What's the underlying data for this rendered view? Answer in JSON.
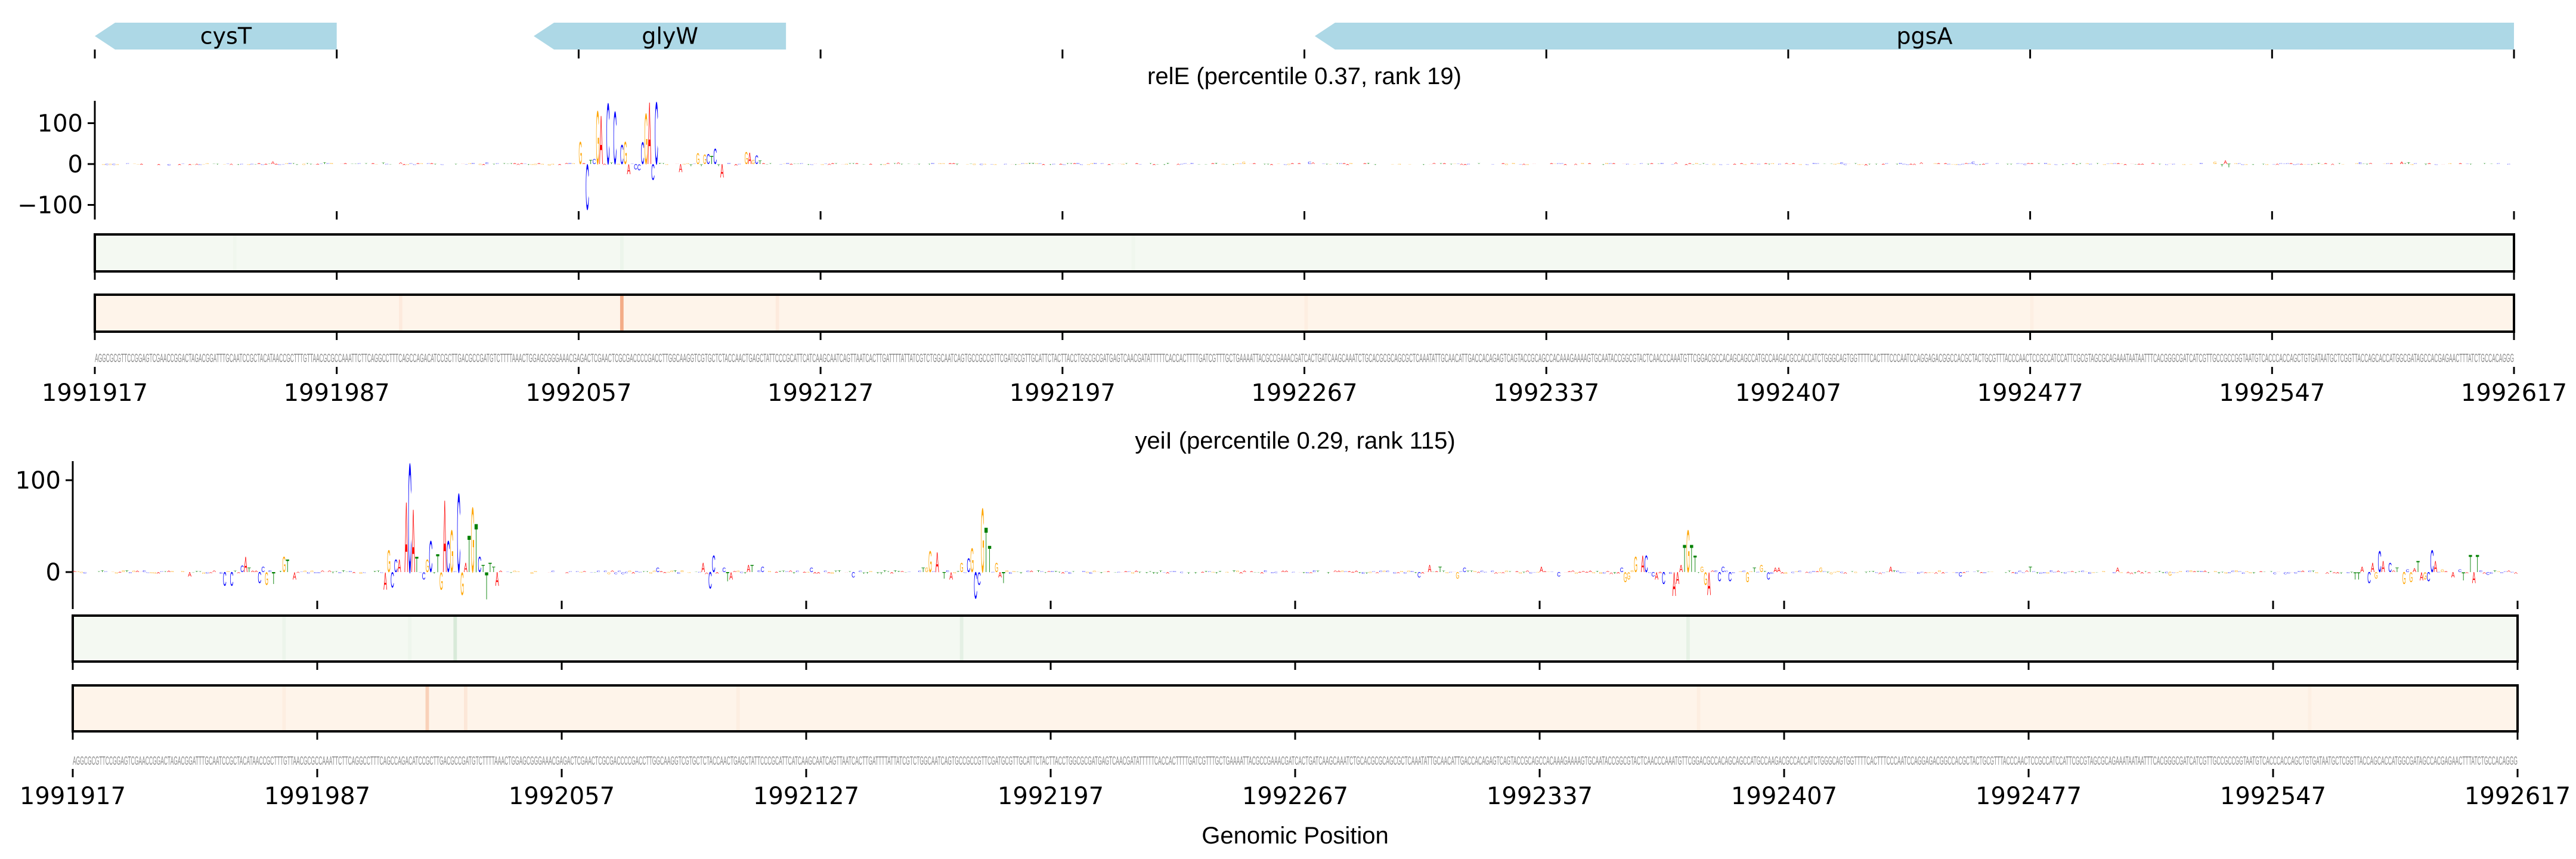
{
  "chart_data": {
    "type": "sequence-logo",
    "xlabel": "Genomic Position",
    "start": 1991917,
    "end": 1992617,
    "xticks": [
      "1991917",
      "1991987",
      "1992057",
      "1992127",
      "1992197",
      "1992267",
      "1992337",
      "1992407",
      "1992477",
      "1992547",
      "1992617"
    ],
    "letter_colors": {
      "A": "#ff0000",
      "C": "#0000ff",
      "G": "#ffa500",
      "T": "#008000"
    },
    "heatmap_colors": {
      "green_base": "#f4f9f2",
      "green_max": "#2e8b3e",
      "orange_base": "#fef4ea",
      "orange_max": "#e6550d"
    },
    "gene_color": "#add8e6",
    "genes": [
      {
        "name": "cysT",
        "start": 1991917,
        "end": 1991987,
        "strand": "-"
      },
      {
        "name": "glyW",
        "start": 1992044,
        "end": 1992117,
        "strand": "-"
      },
      {
        "name": "pgsA",
        "start": 1992270,
        "end": 1992617,
        "strand": "-"
      }
    ],
    "sequence": "AGGCGCGTTCCGGAGTCGAACCGGACTAGACGGATTTGCAATCCGCTACATAACCGCTTTGTTAACGCGCCAAATTCTTCAGGCCTTTCAGCCAGACATCCGCTTGACGCCGATGTCTTTTAAACTGGAGCGGGAAACGAGACTCGAACTCGCGACCCCGACCTTGGCAAGGTCGTGCTCTACCAACTGAGCTATTCCCGCATTCATCAAGCAATCAGTTAATCACTTGATTTTATTATCGTCTGGCAATCAGTGCCGCCGTTCGATGCGTTGCATTCTACTTACCTGGCGCGATGAGTCAACGATATTTTTCACCACTTTTGATCGTTTGCTGAAAATTACGCCGAAACGATCACTGATCAAGCAAATCTGCACGCGCAGCGCTCAAATATTGCAACATTGACCACAGAGTCAGTACCGCAGCCACAAAGAAAAGTGCAATACCGGCGTACTCAACCCAAATGTTCGGACGCCACAGCAGCCATGCCAAGACGCCACCATCTGGGCAGTGGTTTTCACTTTCCCAATCCAGGAGACGGCCACGCTACTGCGTTTACCCAACTCCGCCATCCATTCGCGTAGCGCAGAAATAATAATTTCACGGGCGATCATCGTTGCCGCCGGTAATGTCACCCACCAGCTGTGATAATGCTCGGTTACCAGCACCATGGCGATAGCCACGAGAACTTTATCTGCCACAGGG",
    "panels": [
      {
        "title": "relE (percentile 0.37, rank 19)",
        "yticks": [
          100,
          0,
          -100
        ],
        "ytick_labels": [
          "100",
          "0",
          "−100"
        ],
        "ylim": [
          -115,
          155
        ],
        "peaks_note": "[position offset from start (bp), letter, contribution]",
        "peaks": [
          [
            21,
            "C",
            -4
          ],
          [
            51,
            "A",
            7
          ],
          [
            66,
            "T",
            5
          ],
          [
            83,
            "T",
            4
          ],
          [
            88,
            "A",
            5
          ],
          [
            113,
            "C",
            5
          ],
          [
            131,
            "G",
            -4
          ],
          [
            140,
            "G",
            55
          ],
          [
            142,
            "C",
            -112
          ],
          [
            143,
            "T",
            10
          ],
          [
            144,
            "C",
            12
          ],
          [
            145,
            "G",
            131
          ],
          [
            146,
            "A",
            120
          ],
          [
            148,
            "C",
            150
          ],
          [
            149,
            "T",
            4
          ],
          [
            150,
            "C",
            129
          ],
          [
            152,
            "C",
            47
          ],
          [
            153,
            "G",
            55
          ],
          [
            154,
            "A",
            -25
          ],
          [
            156,
            "C",
            -13
          ],
          [
            157,
            "C",
            -15
          ],
          [
            158,
            "C",
            54
          ],
          [
            159,
            "G",
            124
          ],
          [
            160,
            "A",
            153
          ],
          [
            161,
            "C",
            -39
          ],
          [
            162,
            "C",
            153
          ],
          [
            163,
            "T",
            3
          ],
          [
            169,
            "A",
            -20
          ],
          [
            172,
            "T",
            -5
          ],
          [
            174,
            "G",
            26
          ],
          [
            175,
            "T",
            -5
          ],
          [
            176,
            "G",
            24
          ],
          [
            177,
            "C",
            25
          ],
          [
            178,
            "T",
            20
          ],
          [
            179,
            "C",
            38
          ],
          [
            180,
            "T",
            -5
          ],
          [
            181,
            "A",
            -33
          ],
          [
            185,
            "A",
            -4
          ],
          [
            188,
            "G",
            29
          ],
          [
            189,
            "A",
            28
          ],
          [
            190,
            "G",
            10
          ],
          [
            191,
            "C",
            22
          ],
          [
            192,
            "T",
            8
          ],
          [
            232,
            "A",
            5
          ],
          [
            332,
            "G",
            6
          ],
          [
            351,
            "C",
            6
          ],
          [
            352,
            "A",
            5
          ],
          [
            457,
            "A",
            5
          ],
          [
            505,
            "C",
            5
          ],
          [
            512,
            "A",
            -4
          ],
          [
            528,
            "A",
            5
          ],
          [
            543,
            "C",
            6
          ],
          [
            613,
            "G",
            6
          ],
          [
            615,
            "T",
            -6
          ],
          [
            616,
            "A",
            8
          ],
          [
            617,
            "T",
            -8
          ],
          [
            655,
            "C",
            5
          ],
          [
            667,
            "A",
            6
          ],
          [
            669,
            "T",
            5
          ]
        ],
        "heat_green": [
          [
            152,
            0.04
          ],
          [
            40,
            0.02
          ],
          [
            300,
            0.02
          ]
        ],
        "heat_orange": [
          [
            152,
            0.45
          ],
          [
            88,
            0.06
          ],
          [
            197,
            0.06
          ],
          [
            350,
            0.04
          ],
          [
            560,
            0.03
          ]
        ]
      },
      {
        "title": "yeiI (percentile 0.29, rank 115)",
        "yticks": [
          100,
          0
        ],
        "ytick_labels": [
          "100",
          "0"
        ],
        "ylim": [
          -31,
          121
        ],
        "peaks": [
          [
            33,
            "A",
            -5
          ],
          [
            43,
            "C",
            -15
          ],
          [
            45,
            "C",
            -15
          ],
          [
            48,
            "C",
            7
          ],
          [
            49,
            "A",
            17
          ],
          [
            50,
            "T",
            5
          ],
          [
            53,
            "C",
            -12
          ],
          [
            54,
            "C",
            6
          ],
          [
            55,
            "G",
            -14
          ],
          [
            57,
            "T",
            -13
          ],
          [
            60,
            "G",
            17
          ],
          [
            61,
            "T",
            14
          ],
          [
            63,
            "A",
            -8
          ],
          [
            89,
            "A",
            -19
          ],
          [
            90,
            "G",
            24
          ],
          [
            91,
            "C",
            -17
          ],
          [
            92,
            "C",
            14
          ],
          [
            93,
            "A",
            14
          ],
          [
            95,
            "A",
            77
          ],
          [
            96,
            "C",
            119
          ],
          [
            97,
            "A",
            69
          ],
          [
            98,
            "T",
            17
          ],
          [
            100,
            "C",
            -8
          ],
          [
            101,
            "G",
            14
          ],
          [
            102,
            "C",
            34
          ],
          [
            104,
            "T",
            20
          ],
          [
            105,
            "G",
            -19
          ],
          [
            106,
            "A",
            79
          ],
          [
            107,
            "C",
            34
          ],
          [
            108,
            "G",
            46
          ],
          [
            110,
            "C",
            86
          ],
          [
            111,
            "G",
            -25
          ],
          [
            112,
            "A",
            10
          ],
          [
            113,
            "T",
            40
          ],
          [
            114,
            "G",
            71
          ],
          [
            115,
            "T",
            53
          ],
          [
            116,
            "C",
            17
          ],
          [
            117,
            "T",
            8
          ],
          [
            118,
            "T",
            -30
          ],
          [
            119,
            "T",
            10
          ],
          [
            120,
            "T",
            6
          ],
          [
            121,
            "A",
            -15
          ],
          [
            167,
            "C",
            5
          ],
          [
            180,
            "A",
            10
          ],
          [
            182,
            "C",
            -18
          ],
          [
            183,
            "C",
            18
          ],
          [
            186,
            "C",
            5
          ],
          [
            187,
            "T",
            -10
          ],
          [
            188,
            "A",
            -8
          ],
          [
            193,
            "A",
            8
          ],
          [
            194,
            "T",
            8
          ],
          [
            197,
            "C",
            6
          ],
          [
            211,
            "C",
            5
          ],
          [
            223,
            "C",
            -6
          ],
          [
            243,
            "T",
            5
          ],
          [
            244,
            "G",
            5
          ],
          [
            245,
            "G",
            23
          ],
          [
            247,
            "A",
            22
          ],
          [
            249,
            "T",
            -7
          ],
          [
            251,
            "A",
            -8
          ],
          [
            254,
            "G",
            10
          ],
          [
            256,
            "C",
            15
          ],
          [
            257,
            "G",
            26
          ],
          [
            258,
            "C",
            -29
          ],
          [
            259,
            "C",
            -14
          ],
          [
            260,
            "G",
            70
          ],
          [
            261,
            "T",
            49
          ],
          [
            262,
            "T",
            29
          ],
          [
            264,
            "G",
            10
          ],
          [
            265,
            "A",
            -6
          ],
          [
            266,
            "T",
            -12
          ],
          [
            385,
            "C",
            -6
          ],
          [
            388,
            "A",
            8
          ],
          [
            391,
            "T",
            6
          ],
          [
            396,
            "G",
            -7
          ],
          [
            398,
            "C",
            5
          ],
          [
            420,
            "A",
            6
          ],
          [
            425,
            "C",
            -5
          ],
          [
            443,
            "C",
            5
          ],
          [
            444,
            "G",
            -11
          ],
          [
            445,
            "G",
            -8
          ],
          [
            447,
            "G",
            17
          ],
          [
            449,
            "A",
            18
          ],
          [
            450,
            "C",
            18
          ],
          [
            452,
            "C",
            -5
          ],
          [
            453,
            "A",
            -8
          ],
          [
            455,
            "C",
            -13
          ],
          [
            458,
            "A",
            -26
          ],
          [
            459,
            "A",
            -13
          ],
          [
            460,
            "A",
            8
          ],
          [
            461,
            "T",
            30
          ],
          [
            462,
            "G",
            46
          ],
          [
            463,
            "T",
            30
          ],
          [
            464,
            "T",
            18
          ],
          [
            466,
            "G",
            6
          ],
          [
            467,
            "G",
            -14
          ],
          [
            468,
            "A",
            -25
          ],
          [
            471,
            "C",
            -10
          ],
          [
            472,
            "C",
            6
          ],
          [
            474,
            "C",
            -10
          ],
          [
            479,
            "G",
            -11
          ],
          [
            481,
            "T",
            5
          ],
          [
            483,
            "G",
            8
          ],
          [
            485,
            "C",
            -8
          ],
          [
            487,
            "A",
            5
          ],
          [
            488,
            "A",
            5
          ],
          [
            500,
            "G",
            5
          ],
          [
            520,
            "A",
            6
          ],
          [
            540,
            "C",
            -5
          ],
          [
            560,
            "T",
            6
          ],
          [
            585,
            "A",
            5
          ],
          [
            600,
            "G",
            -4
          ],
          [
            653,
            "T",
            -8
          ],
          [
            654,
            "T",
            -8
          ],
          [
            655,
            "A",
            6
          ],
          [
            657,
            "C",
            -12
          ],
          [
            658,
            "A",
            10
          ],
          [
            659,
            "G",
            -7
          ],
          [
            660,
            "C",
            23
          ],
          [
            661,
            "A",
            12
          ],
          [
            663,
            "C",
            10
          ],
          [
            665,
            "T",
            5
          ],
          [
            667,
            "G",
            -13
          ],
          [
            668,
            "C",
            3
          ],
          [
            669,
            "G",
            -11
          ],
          [
            670,
            "A",
            4
          ],
          [
            671,
            "T",
            12
          ],
          [
            672,
            "A",
            -9
          ],
          [
            673,
            "G",
            -8
          ],
          [
            674,
            "C",
            -10
          ],
          [
            675,
            "C",
            24
          ],
          [
            676,
            "A",
            12
          ],
          [
            678,
            "G",
            3
          ],
          [
            681,
            "A",
            -6
          ],
          [
            683,
            "C",
            3
          ],
          [
            684,
            "T",
            -9
          ],
          [
            686,
            "T",
            19
          ],
          [
            687,
            "A",
            -12
          ],
          [
            688,
            "T",
            19
          ],
          [
            689,
            "C",
            2
          ],
          [
            691,
            "C",
            -3
          ]
        ],
        "heat_green": [
          [
            109,
            0.14
          ],
          [
            60,
            0.04
          ],
          [
            254,
            0.08
          ],
          [
            462,
            0.07
          ],
          [
            96,
            0.03
          ]
        ],
        "heat_orange": [
          [
            101,
            0.22
          ],
          [
            112,
            0.08
          ],
          [
            60,
            0.04
          ],
          [
            190,
            0.04
          ],
          [
            465,
            0.04
          ],
          [
            640,
            0.03
          ]
        ]
      }
    ]
  }
}
